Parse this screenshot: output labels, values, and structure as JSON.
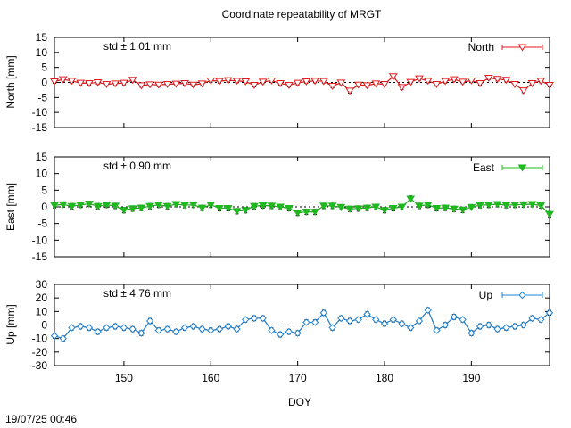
{
  "title": "Coordinate repeatability of MRGT",
  "xlabel": "DOY",
  "timestamp": "19/07/25 00:46",
  "x_ticks": [
    150,
    160,
    170,
    180,
    190
  ],
  "xlim": [
    142,
    199
  ],
  "chart_data": [
    {
      "type": "line",
      "name": "North",
      "ylabel": "North [mm]",
      "ylim": [
        -15,
        15
      ],
      "y_ticks": [
        -15,
        -10,
        -5,
        0,
        5,
        10,
        15
      ],
      "std_label": "std ± 1.01 mm",
      "legend": "North",
      "color": "#e41a1c",
      "marker": "triangle-down-open",
      "grid": false,
      "x": [
        142,
        143,
        144,
        145,
        146,
        147,
        148,
        149,
        150,
        151,
        152,
        153,
        154,
        155,
        156,
        157,
        158,
        159,
        160,
        161,
        162,
        163,
        164,
        165,
        166,
        167,
        168,
        169,
        170,
        171,
        172,
        173,
        174,
        175,
        176,
        177,
        178,
        179,
        180,
        181,
        182,
        183,
        184,
        185,
        186,
        187,
        188,
        189,
        190,
        191,
        192,
        193,
        194,
        195,
        196,
        197,
        198,
        199
      ],
      "y": [
        0.3,
        1.0,
        0.5,
        -0.2,
        -0.3,
        0.0,
        -0.6,
        -0.4,
        -0.2,
        0.8,
        -1.0,
        -0.7,
        -0.8,
        -0.6,
        -0.5,
        -0.3,
        -0.8,
        -0.4,
        0.6,
        0.4,
        0.7,
        0.5,
        0.3,
        -0.9,
        0.2,
        0.6,
        -0.3,
        -0.9,
        -0.2,
        0.3,
        0.5,
        0.4,
        -1.2,
        -0.1,
        -2.8,
        -0.8,
        -1.0,
        -0.4,
        -0.6,
        2.0,
        -1.6,
        0.1,
        1.3,
        0.5,
        -0.6,
        0.4,
        1.0,
        0.2,
        0.6,
        -0.3,
        1.5,
        1.1,
        0.8,
        -0.6,
        -2.7,
        -0.3,
        0.5,
        -0.9
      ],
      "err": [
        0.6,
        0.6,
        0.6,
        0.6,
        0.6,
        0.6,
        0.6,
        0.6,
        0.6,
        0.6,
        0.6,
        0.6,
        0.6,
        0.6,
        0.6,
        0.6,
        0.6,
        0.6,
        0.6,
        0.6,
        0.6,
        0.6,
        0.6,
        0.6,
        0.6,
        0.6,
        0.6,
        0.6,
        0.6,
        0.6,
        0.6,
        0.6,
        0.6,
        0.6,
        0.7,
        0.6,
        0.6,
        0.6,
        0.6,
        0.6,
        0.7,
        0.6,
        0.6,
        0.6,
        0.6,
        0.6,
        0.6,
        0.6,
        0.6,
        0.6,
        0.6,
        0.6,
        0.6,
        0.6,
        0.7,
        0.6,
        0.6,
        0.6
      ]
    },
    {
      "type": "line",
      "name": "East",
      "ylabel": "East [mm]",
      "ylim": [
        -15,
        15
      ],
      "y_ticks": [
        -15,
        -10,
        -5,
        0,
        5,
        10,
        15
      ],
      "std_label": "std ± 0.90 mm",
      "legend": "East",
      "color": "#1fb81f",
      "marker": "triangle-down-filled",
      "grid": false,
      "x": [
        142,
        143,
        144,
        145,
        146,
        147,
        148,
        149,
        150,
        151,
        152,
        153,
        154,
        155,
        156,
        157,
        158,
        159,
        160,
        161,
        162,
        163,
        164,
        165,
        166,
        167,
        168,
        169,
        170,
        171,
        172,
        173,
        174,
        175,
        176,
        177,
        178,
        179,
        180,
        181,
        182,
        183,
        184,
        185,
        186,
        187,
        188,
        189,
        190,
        191,
        192,
        193,
        194,
        195,
        196,
        197,
        198,
        199
      ],
      "y": [
        0.5,
        0.7,
        0.2,
        0.6,
        0.9,
        0.2,
        0.6,
        0.3,
        -1.0,
        -0.5,
        -0.3,
        0.2,
        0.6,
        0.2,
        0.8,
        0.5,
        0.6,
        -0.3,
        0.6,
        -0.4,
        -0.4,
        -1.3,
        -1.0,
        0.2,
        0.4,
        0.3,
        0.0,
        -0.4,
        -1.8,
        -1.5,
        -1.5,
        0.3,
        0.3,
        -0.1,
        -0.6,
        -0.5,
        -0.3,
        0.0,
        -1.0,
        -0.4,
        0.0,
        2.4,
        0.3,
        0.6,
        -0.4,
        -0.3,
        -0.6,
        -0.9,
        -0.1,
        0.5,
        0.6,
        0.8,
        0.5,
        0.6,
        0.7,
        0.8,
        0.4,
        -2.2
      ],
      "err": [
        0.8,
        0.8,
        0.8,
        0.8,
        0.8,
        0.8,
        0.8,
        0.8,
        0.8,
        0.8,
        0.8,
        0.8,
        0.8,
        0.8,
        0.8,
        0.8,
        0.8,
        0.8,
        0.8,
        0.8,
        0.8,
        0.8,
        0.8,
        0.8,
        0.8,
        0.8,
        0.8,
        0.8,
        0.8,
        0.8,
        0.8,
        0.8,
        0.8,
        0.8,
        0.8,
        0.8,
        0.8,
        0.8,
        0.8,
        0.8,
        0.8,
        0.9,
        0.8,
        0.8,
        0.8,
        0.8,
        0.8,
        0.8,
        0.8,
        0.8,
        0.8,
        0.8,
        0.8,
        0.8,
        0.8,
        0.8,
        0.8,
        0.8
      ]
    },
    {
      "type": "line",
      "name": "Up",
      "ylabel": "Up [mm]",
      "ylim": [
        -30,
        30
      ],
      "y_ticks": [
        -30,
        -20,
        -10,
        0,
        10,
        20,
        30
      ],
      "std_label": "std ± 4.76 mm",
      "legend": "Up",
      "color": "#1f84d6",
      "marker": "diamond-open",
      "grid": false,
      "x": [
        142,
        143,
        144,
        145,
        146,
        147,
        148,
        149,
        150,
        151,
        152,
        153,
        154,
        155,
        156,
        157,
        158,
        159,
        160,
        161,
        162,
        163,
        164,
        165,
        166,
        167,
        168,
        169,
        170,
        171,
        172,
        173,
        174,
        175,
        176,
        177,
        178,
        179,
        180,
        181,
        182,
        183,
        184,
        185,
        186,
        187,
        188,
        189,
        190,
        191,
        192,
        193,
        194,
        195,
        196,
        197,
        198,
        199
      ],
      "y": [
        -8,
        -10,
        -2,
        -1,
        -2,
        -5,
        -2,
        -1,
        -2,
        -3,
        -6,
        3,
        -4,
        -3,
        -5,
        -2,
        -1,
        -3,
        -4,
        -3,
        -1,
        -3,
        4,
        5,
        5,
        -4,
        -7,
        -5,
        -6,
        2,
        2,
        9,
        -2,
        5,
        3,
        4,
        8,
        4,
        1,
        4,
        1,
        -2,
        3,
        11,
        -4,
        0,
        6,
        4,
        -6,
        -1,
        0,
        -3,
        -2,
        -1,
        0,
        5,
        4,
        9
      ],
      "err": [
        1.8,
        1.8,
        1.8,
        1.8,
        1.8,
        1.8,
        1.8,
        1.8,
        1.8,
        1.8,
        1.8,
        1.8,
        1.8,
        1.8,
        1.8,
        1.8,
        1.8,
        1.8,
        1.8,
        1.8,
        1.8,
        1.8,
        1.8,
        1.8,
        1.8,
        1.8,
        1.8,
        1.8,
        1.8,
        1.8,
        1.8,
        1.8,
        1.8,
        1.8,
        1.8,
        1.8,
        1.8,
        1.8,
        1.8,
        1.8,
        1.8,
        1.8,
        1.8,
        1.8,
        1.8,
        1.8,
        1.8,
        1.8,
        1.8,
        1.8,
        1.8,
        1.8,
        1.8,
        1.8,
        1.8,
        1.8,
        1.8,
        1.8
      ]
    }
  ]
}
